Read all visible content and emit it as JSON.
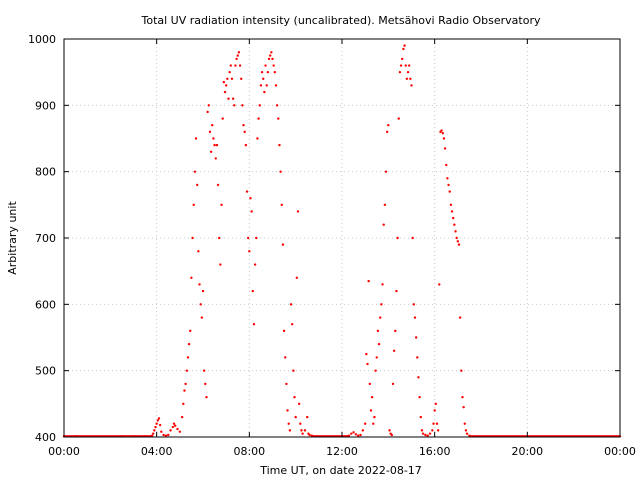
{
  "chart_data": {
    "type": "scatter",
    "title": "Total UV radiation intensity (uncalibrated). Metsähovi Radio Observatory",
    "xlabel": "Time UT, on date 2022-08-17",
    "ylabel": "Arbitrary unit",
    "xlim_hours": [
      0,
      24
    ],
    "ylim": [
      400,
      1000
    ],
    "x_ticks": [
      {
        "hour": 0,
        "label": "00:00"
      },
      {
        "hour": 4,
        "label": "04:00"
      },
      {
        "hour": 8,
        "label": "08:00"
      },
      {
        "hour": 12,
        "label": "12:00"
      },
      {
        "hour": 16,
        "label": "16:00"
      },
      {
        "hour": 20,
        "label": "20:00"
      },
      {
        "hour": 24,
        "label": "00:00"
      }
    ],
    "y_ticks": [
      400,
      500,
      600,
      700,
      800,
      900,
      1000
    ],
    "grid": true,
    "marker_color": "#ff0000",
    "series": [
      {
        "points": [
          [
            0.0,
            401
          ],
          [
            0.5,
            401
          ],
          [
            1.0,
            401
          ],
          [
            1.5,
            401
          ],
          [
            2.0,
            401
          ],
          [
            2.5,
            401
          ],
          [
            3.0,
            401
          ],
          [
            3.5,
            401
          ],
          [
            3.8,
            402
          ],
          [
            3.85,
            405
          ],
          [
            3.9,
            410
          ],
          [
            3.95,
            415
          ],
          [
            4.0,
            420
          ],
          [
            4.05,
            425
          ],
          [
            4.1,
            428
          ],
          [
            4.15,
            418
          ],
          [
            4.2,
            408
          ],
          [
            4.3,
            403
          ],
          [
            4.4,
            402
          ],
          [
            4.5,
            403
          ],
          [
            4.6,
            410
          ],
          [
            4.7,
            415
          ],
          [
            4.75,
            420
          ],
          [
            4.8,
            417
          ],
          [
            4.9,
            412
          ],
          [
            5.0,
            408
          ],
          [
            5.1,
            430
          ],
          [
            5.15,
            450
          ],
          [
            5.2,
            470
          ],
          [
            5.25,
            480
          ],
          [
            5.3,
            500
          ],
          [
            5.35,
            520
          ],
          [
            5.4,
            540
          ],
          [
            5.45,
            560
          ],
          [
            5.5,
            640
          ],
          [
            5.55,
            700
          ],
          [
            5.6,
            750
          ],
          [
            5.65,
            800
          ],
          [
            5.7,
            850
          ],
          [
            5.75,
            780
          ],
          [
            5.8,
            680
          ],
          [
            5.85,
            630
          ],
          [
            5.9,
            600
          ],
          [
            5.95,
            580
          ],
          [
            6.0,
            620
          ],
          [
            6.05,
            500
          ],
          [
            6.1,
            480
          ],
          [
            6.15,
            460
          ],
          [
            6.2,
            890
          ],
          [
            6.25,
            900
          ],
          [
            6.3,
            860
          ],
          [
            6.35,
            830
          ],
          [
            6.4,
            870
          ],
          [
            6.45,
            850
          ],
          [
            6.5,
            840
          ],
          [
            6.55,
            820
          ],
          [
            6.6,
            840
          ],
          [
            6.65,
            780
          ],
          [
            6.7,
            700
          ],
          [
            6.75,
            660
          ],
          [
            6.8,
            750
          ],
          [
            6.85,
            880
          ],
          [
            6.9,
            935
          ],
          [
            6.95,
            920
          ],
          [
            7.0,
            930
          ],
          [
            7.05,
            940
          ],
          [
            7.1,
            910
          ],
          [
            7.15,
            950
          ],
          [
            7.2,
            960
          ],
          [
            7.25,
            940
          ],
          [
            7.3,
            910
          ],
          [
            7.35,
            900
          ],
          [
            7.4,
            960
          ],
          [
            7.45,
            970
          ],
          [
            7.5,
            975
          ],
          [
            7.55,
            980
          ],
          [
            7.6,
            960
          ],
          [
            7.65,
            940
          ],
          [
            7.7,
            900
          ],
          [
            7.75,
            870
          ],
          [
            7.8,
            860
          ],
          [
            7.85,
            840
          ],
          [
            7.9,
            770
          ],
          [
            7.95,
            700
          ],
          [
            8.0,
            680
          ],
          [
            8.05,
            760
          ],
          [
            8.1,
            740
          ],
          [
            8.15,
            620
          ],
          [
            8.2,
            570
          ],
          [
            8.25,
            660
          ],
          [
            8.3,
            700
          ],
          [
            8.35,
            850
          ],
          [
            8.4,
            880
          ],
          [
            8.45,
            900
          ],
          [
            8.5,
            930
          ],
          [
            8.55,
            950
          ],
          [
            8.6,
            940
          ],
          [
            8.65,
            920
          ],
          [
            8.7,
            960
          ],
          [
            8.75,
            930
          ],
          [
            8.8,
            950
          ],
          [
            8.85,
            970
          ],
          [
            8.9,
            975
          ],
          [
            8.95,
            980
          ],
          [
            9.0,
            970
          ],
          [
            9.05,
            960
          ],
          [
            9.1,
            950
          ],
          [
            9.15,
            930
          ],
          [
            9.2,
            900
          ],
          [
            9.25,
            880
          ],
          [
            9.3,
            840
          ],
          [
            9.35,
            800
          ],
          [
            9.4,
            750
          ],
          [
            9.45,
            690
          ],
          [
            9.5,
            560
          ],
          [
            9.55,
            520
          ],
          [
            9.6,
            480
          ],
          [
            9.65,
            440
          ],
          [
            9.7,
            420
          ],
          [
            9.75,
            410
          ],
          [
            9.8,
            600
          ],
          [
            9.85,
            570
          ],
          [
            9.9,
            500
          ],
          [
            9.95,
            460
          ],
          [
            10.0,
            430
          ],
          [
            10.05,
            640
          ],
          [
            10.1,
            740
          ],
          [
            10.15,
            450
          ],
          [
            10.2,
            420
          ],
          [
            10.25,
            410
          ],
          [
            10.3,
            405
          ],
          [
            10.4,
            410
          ],
          [
            10.5,
            430
          ],
          [
            10.55,
            405
          ],
          [
            10.6,
            403
          ],
          [
            10.7,
            402
          ],
          [
            10.8,
            401
          ],
          [
            11.0,
            401
          ],
          [
            11.3,
            401
          ],
          [
            11.6,
            401
          ],
          [
            11.9,
            401
          ],
          [
            12.1,
            401
          ],
          [
            12.3,
            402
          ],
          [
            12.4,
            405
          ],
          [
            12.5,
            407
          ],
          [
            12.6,
            404
          ],
          [
            12.7,
            402
          ],
          [
            12.8,
            403
          ],
          [
            12.9,
            410
          ],
          [
            13.0,
            420
          ],
          [
            13.05,
            525
          ],
          [
            13.1,
            510
          ],
          [
            13.15,
            635
          ],
          [
            13.2,
            480
          ],
          [
            13.25,
            440
          ],
          [
            13.3,
            460
          ],
          [
            13.35,
            420
          ],
          [
            13.4,
            430
          ],
          [
            13.45,
            500
          ],
          [
            13.5,
            520
          ],
          [
            13.55,
            560
          ],
          [
            13.6,
            540
          ],
          [
            13.65,
            580
          ],
          [
            13.7,
            600
          ],
          [
            13.75,
            630
          ],
          [
            13.8,
            720
          ],
          [
            13.85,
            750
          ],
          [
            13.9,
            800
          ],
          [
            13.95,
            860
          ],
          [
            14.0,
            870
          ],
          [
            14.05,
            410
          ],
          [
            14.1,
            405
          ],
          [
            14.15,
            403
          ],
          [
            14.2,
            480
          ],
          [
            14.25,
            530
          ],
          [
            14.3,
            560
          ],
          [
            14.35,
            620
          ],
          [
            14.4,
            700
          ],
          [
            14.45,
            880
          ],
          [
            14.5,
            950
          ],
          [
            14.55,
            960
          ],
          [
            14.6,
            970
          ],
          [
            14.65,
            985
          ],
          [
            14.7,
            990
          ],
          [
            14.75,
            960
          ],
          [
            14.8,
            940
          ],
          [
            14.85,
            950
          ],
          [
            14.9,
            960
          ],
          [
            14.95,
            940
          ],
          [
            15.0,
            930
          ],
          [
            15.05,
            700
          ],
          [
            15.1,
            600
          ],
          [
            15.15,
            580
          ],
          [
            15.2,
            550
          ],
          [
            15.25,
            520
          ],
          [
            15.3,
            490
          ],
          [
            15.35,
            460
          ],
          [
            15.4,
            430
          ],
          [
            15.45,
            410
          ],
          [
            15.5,
            405
          ],
          [
            15.6,
            403
          ],
          [
            15.7,
            402
          ],
          [
            15.8,
            405
          ],
          [
            15.9,
            410
          ],
          [
            15.95,
            420
          ],
          [
            16.0,
            440
          ],
          [
            16.05,
            450
          ],
          [
            16.1,
            420
          ],
          [
            16.15,
            410
          ],
          [
            16.2,
            630
          ],
          [
            16.25,
            860
          ],
          [
            16.3,
            862
          ],
          [
            16.35,
            858
          ],
          [
            16.4,
            850
          ],
          [
            16.45,
            835
          ],
          [
            16.5,
            810
          ],
          [
            16.55,
            790
          ],
          [
            16.6,
            780
          ],
          [
            16.65,
            770
          ],
          [
            16.7,
            750
          ],
          [
            16.75,
            740
          ],
          [
            16.8,
            730
          ],
          [
            16.85,
            720
          ],
          [
            16.9,
            710
          ],
          [
            16.95,
            700
          ],
          [
            17.0,
            695
          ],
          [
            17.05,
            690
          ],
          [
            17.1,
            580
          ],
          [
            17.15,
            500
          ],
          [
            17.2,
            460
          ],
          [
            17.25,
            445
          ],
          [
            17.3,
            420
          ],
          [
            17.35,
            410
          ],
          [
            17.4,
            405
          ],
          [
            17.5,
            402
          ],
          [
            17.7,
            401
          ],
          [
            18.0,
            401
          ],
          [
            18.5,
            401
          ],
          [
            19.0,
            401
          ],
          [
            19.5,
            401
          ],
          [
            20.0,
            401
          ],
          [
            20.5,
            401
          ],
          [
            21.0,
            401
          ],
          [
            21.5,
            401
          ],
          [
            22.0,
            401
          ],
          [
            22.5,
            401
          ],
          [
            23.0,
            401
          ],
          [
            23.5,
            401
          ],
          [
            24.0,
            401
          ]
        ]
      }
    ]
  }
}
